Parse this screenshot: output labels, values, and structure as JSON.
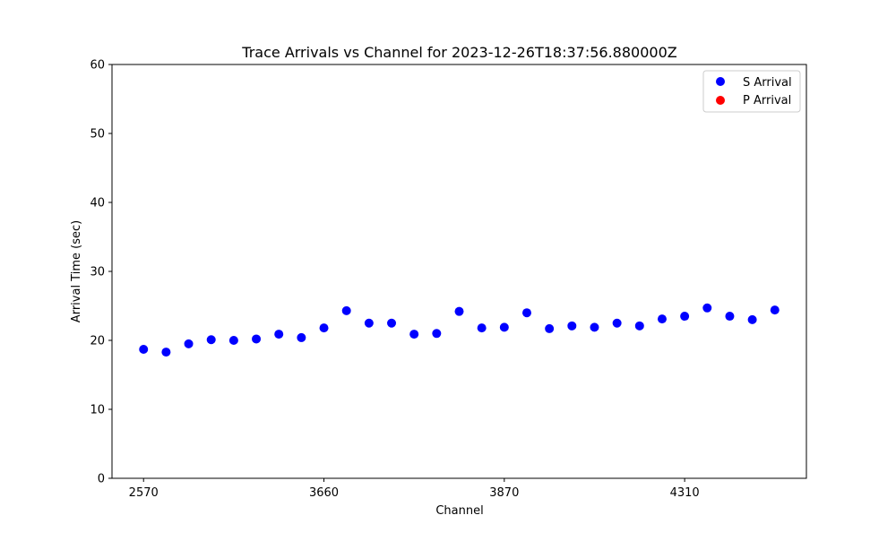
{
  "chart_data": {
    "type": "scatter",
    "title": "Trace Arrivals vs Channel for 2023-12-26T18:37:56.880000Z",
    "xlabel": "Channel",
    "ylabel": "Arrival Time (sec)",
    "ylim": [
      0,
      60
    ],
    "y_ticks": [
      0,
      10,
      20,
      30,
      40,
      50,
      60
    ],
    "x_ticks": [
      "2570",
      "3660",
      "3870",
      "4310"
    ],
    "x_tick_positions": [
      0,
      8,
      16,
      24
    ],
    "x_range": [
      -1.4,
      29.4
    ],
    "legend_position": "top-right",
    "grid": false,
    "series": [
      {
        "name": "S Arrival",
        "color": "#0000ff",
        "x": [
          0,
          1,
          2,
          3,
          4,
          5,
          6,
          7,
          8,
          9,
          10,
          11,
          12,
          13,
          14,
          15,
          16,
          17,
          18,
          19,
          20,
          21,
          22,
          23,
          24,
          25,
          26,
          27,
          28
        ],
        "y": [
          18.7,
          18.3,
          19.5,
          20.1,
          20.0,
          20.2,
          20.9,
          20.4,
          21.8,
          24.3,
          22.5,
          22.5,
          20.9,
          21.0,
          24.2,
          21.8,
          21.9,
          24.0,
          21.7,
          22.1,
          21.9,
          22.5,
          22.1,
          23.1,
          23.5,
          24.7,
          23.5,
          23.0,
          24.4
        ]
      },
      {
        "name": "P Arrival",
        "color": "#ff0000",
        "x": [],
        "y": []
      }
    ]
  }
}
